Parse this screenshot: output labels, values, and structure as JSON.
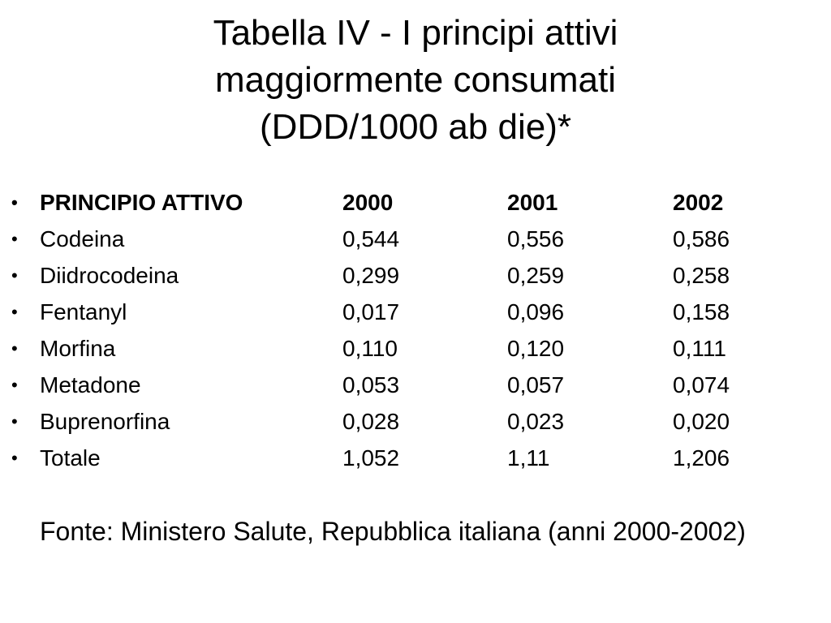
{
  "title_lines": [
    "Tabella IV - I principi attivi",
    "maggiormente consumati",
    "(DDD/1000 ab die)*"
  ],
  "bullet_symbol": "•",
  "table": {
    "header": [
      "PRINCIPIO ATTIVO",
      "2000",
      "2001",
      "2002"
    ],
    "rows": [
      [
        "Codeina",
        "0,544",
        "0,556",
        "0,586"
      ],
      [
        "Diidrocodeina",
        "0,299",
        "0,259",
        "0,258"
      ],
      [
        "Fentanyl",
        "0,017",
        "0,096",
        "0,158"
      ],
      [
        "Morfina",
        "0,110",
        "0,120",
        "0,111"
      ],
      [
        "Metadone",
        "0,053",
        "0,057",
        "0,074"
      ],
      [
        "Buprenorfina",
        "0,028",
        "0,023",
        "0,020"
      ],
      [
        "Totale",
        "1,052",
        "1,11",
        "1,206"
      ]
    ]
  },
  "source": "Fonte: Ministero Salute, Repubblica italiana (anni 2000-2002)"
}
